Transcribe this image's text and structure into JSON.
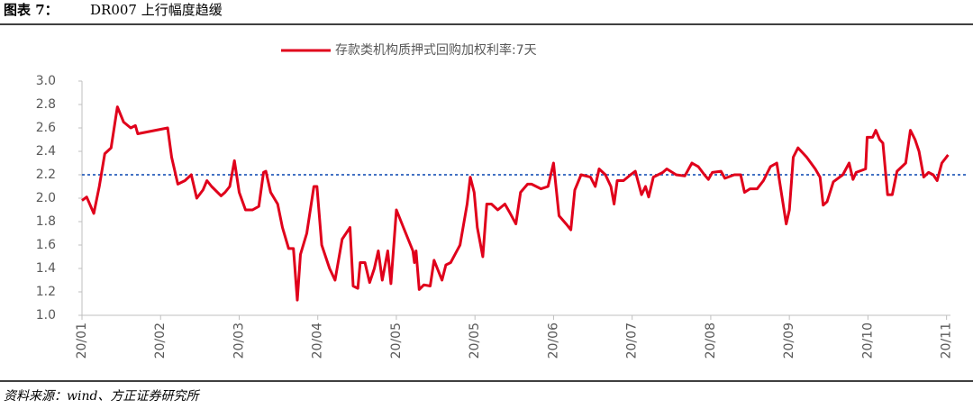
{
  "header": {
    "label": "图表 7：",
    "title": "DR007 上行幅度趋缓"
  },
  "chart_data": {
    "type": "line",
    "series": [
      {
        "name": "存款类机构质押式回购加权利率:7天",
        "color": "#e0001b",
        "x": [
          0,
          0.06,
          0.15,
          0.22,
          0.29,
          0.37,
          0.45,
          0.53,
          0.62,
          0.68,
          0.71,
          1.09,
          1.14,
          1.22,
          1.31,
          1.39,
          1.46,
          1.54,
          1.59,
          1.65,
          1.77,
          1.82,
          1.88,
          1.94,
          2.0,
          2.08,
          2.17,
          2.25,
          2.31,
          2.34,
          2.4,
          2.49,
          2.55,
          2.63,
          2.69,
          2.74,
          2.78,
          2.86,
          2.95,
          2.99,
          3.05,
          3.15,
          3.22,
          3.31,
          3.41,
          3.45,
          3.51,
          3.54,
          3.6,
          3.66,
          3.72,
          3.77,
          3.82,
          3.89,
          3.93,
          4.0,
          4.09,
          4.21,
          4.23,
          4.25,
          4.29,
          4.35,
          4.43,
          4.48,
          4.58,
          4.63,
          4.69,
          4.81,
          4.9,
          4.94,
          4.99,
          5.03,
          5.1,
          5.15,
          5.21,
          5.29,
          5.38,
          5.44,
          5.52,
          5.58,
          5.67,
          5.72,
          5.84,
          5.93,
          6.0,
          6.07,
          6.16,
          6.22,
          6.27,
          6.35,
          6.47,
          6.53,
          6.58,
          6.66,
          6.73,
          6.77,
          6.81,
          6.89,
          6.98,
          7.04,
          7.12,
          7.17,
          7.21,
          7.27,
          7.39,
          7.44,
          7.56,
          7.67,
          7.76,
          7.84,
          7.92,
          7.97,
          8.02,
          8.13,
          8.18,
          8.3,
          8.38,
          8.43,
          8.5,
          8.59,
          8.67,
          8.76,
          8.84,
          8.89,
          8.96,
          9.0,
          9.05,
          9.11,
          9.22,
          9.33,
          9.39,
          9.43,
          9.48,
          9.56,
          9.68,
          9.76,
          9.81,
          9.85,
          9.97,
          9.99,
          10.06,
          10.1,
          10.15,
          10.19,
          10.25,
          10.31,
          10.37,
          10.48,
          10.54,
          10.6,
          10.65,
          10.71,
          10.77,
          10.83,
          10.88,
          10.94,
          11.02
        ],
        "values": [
          1.98,
          2.01,
          1.87,
          2.1,
          2.38,
          2.43,
          2.78,
          2.65,
          2.6,
          2.62,
          2.55,
          2.6,
          2.35,
          2.12,
          2.15,
          2.2,
          2.0,
          2.07,
          2.15,
          2.1,
          2.02,
          2.05,
          2.1,
          2.32,
          2.05,
          1.9,
          1.9,
          1.93,
          2.22,
          2.23,
          2.05,
          1.95,
          1.75,
          1.57,
          1.57,
          1.13,
          1.52,
          1.7,
          2.1,
          2.1,
          1.6,
          1.4,
          1.3,
          1.65,
          1.75,
          1.25,
          1.23,
          1.45,
          1.45,
          1.28,
          1.4,
          1.55,
          1.3,
          1.55,
          1.27,
          1.9,
          1.75,
          1.55,
          1.45,
          1.55,
          1.22,
          1.26,
          1.25,
          1.47,
          1.3,
          1.43,
          1.45,
          1.6,
          1.95,
          2.18,
          2.05,
          1.75,
          1.5,
          1.95,
          1.95,
          1.9,
          1.95,
          1.88,
          1.78,
          2.05,
          2.12,
          2.12,
          2.08,
          2.1,
          2.3,
          1.85,
          1.78,
          1.73,
          2.07,
          2.2,
          2.18,
          2.1,
          2.25,
          2.2,
          2.1,
          1.95,
          2.15,
          2.15,
          2.2,
          2.23,
          2.03,
          2.1,
          2.01,
          2.18,
          2.22,
          2.25,
          2.2,
          2.19,
          2.3,
          2.27,
          2.2,
          2.16,
          2.22,
          2.23,
          2.17,
          2.2,
          2.2,
          2.05,
          2.08,
          2.08,
          2.15,
          2.27,
          2.3,
          2.08,
          1.78,
          1.9,
          2.35,
          2.43,
          2.35,
          2.25,
          2.18,
          1.94,
          1.97,
          2.14,
          2.2,
          2.3,
          2.16,
          2.22,
          2.25,
          2.52,
          2.52,
          2.58,
          2.5,
          2.47,
          2.03,
          2.03,
          2.23,
          2.3,
          2.58,
          2.5,
          2.4,
          2.18,
          2.22,
          2.2,
          2.15,
          2.3,
          2.37
        ]
      }
    ],
    "reference_line": {
      "value": 2.2,
      "color": "#4472c4"
    },
    "xlim": [
      0,
      11.05
    ],
    "xticks": [
      {
        "value": 0,
        "label": "20/01"
      },
      {
        "value": 1,
        "label": "20/02"
      },
      {
        "value": 2,
        "label": "20/03"
      },
      {
        "value": 3,
        "label": "20/04"
      },
      {
        "value": 4,
        "label": "20/05"
      },
      {
        "value": 5,
        "label": "20/05"
      },
      {
        "value": 6,
        "label": "20/06"
      },
      {
        "value": 7,
        "label": "20/07"
      },
      {
        "value": 8,
        "label": "20/08"
      },
      {
        "value": 9,
        "label": "20/09"
      },
      {
        "value": 10,
        "label": "20/10"
      },
      {
        "value": 11,
        "label": "20/11"
      }
    ],
    "ylim": [
      1.0,
      3.0
    ],
    "yticks": [
      {
        "value": 1.0,
        "label": "1.0"
      },
      {
        "value": 1.2,
        "label": "1.2"
      },
      {
        "value": 1.4,
        "label": "1.4"
      },
      {
        "value": 1.6,
        "label": "1.6"
      },
      {
        "value": 1.8,
        "label": "1.8"
      },
      {
        "value": 2.0,
        "label": "2.0"
      },
      {
        "value": 2.2,
        "label": "2.2"
      },
      {
        "value": 2.4,
        "label": "2.4"
      },
      {
        "value": 2.6,
        "label": "2.6"
      },
      {
        "value": 2.8,
        "label": "2.8"
      },
      {
        "value": 3.0,
        "label": "3.0"
      }
    ],
    "legend": "top"
  },
  "footer": {
    "source": "资料来源：wind、方正证券研究所"
  }
}
